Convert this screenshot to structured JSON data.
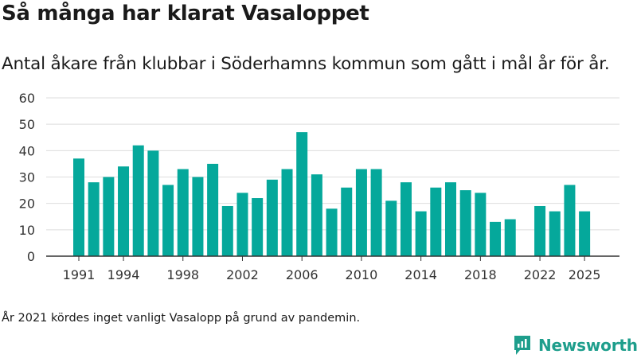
{
  "header": {
    "title": "Så många har klarat Vasaloppet",
    "subtitle": "Antal åkare från klubbar i Söderhamns kommun som gått i mål år för år."
  },
  "footer": {
    "note": "År 2021 kördes inget vanligt Vasalopp på grund av pandemin.",
    "brand": "Newsworthy"
  },
  "chart_data": {
    "type": "bar",
    "title": "Så många har klarat Vasaloppet",
    "subtitle": "Antal åkare från klubbar i Söderhamns kommun som gått i mål år för år.",
    "x": [
      1991,
      1992,
      1993,
      1994,
      1995,
      1996,
      1997,
      1998,
      1999,
      2000,
      2001,
      2002,
      2003,
      2004,
      2005,
      2006,
      2007,
      2008,
      2009,
      2010,
      2011,
      2012,
      2013,
      2014,
      2015,
      2016,
      2017,
      2018,
      2019,
      2020,
      2021,
      2022,
      2023,
      2024,
      2025
    ],
    "values": [
      37,
      28,
      30,
      34,
      42,
      40,
      27,
      33,
      30,
      35,
      19,
      24,
      22,
      29,
      33,
      47,
      31,
      18,
      26,
      33,
      33,
      21,
      28,
      17,
      26,
      28,
      25,
      24,
      13,
      14,
      null,
      19,
      17,
      27,
      17
    ],
    "x_tick_labels": [
      "1991",
      "1994",
      "1998",
      "2002",
      "2006",
      "2010",
      "2014",
      "2018",
      "2022",
      "2025"
    ],
    "y_tick_labels": [
      "0",
      "10",
      "20",
      "30",
      "40",
      "50",
      "60"
    ],
    "ylim": [
      0,
      60
    ],
    "grid": true,
    "bar_color": "#05a89b",
    "xlabel": "",
    "ylabel": ""
  },
  "colors": {
    "bar": "#05a89b",
    "grid": "#dddddd",
    "axis": "#333333",
    "brand": "#1e9e8c"
  }
}
